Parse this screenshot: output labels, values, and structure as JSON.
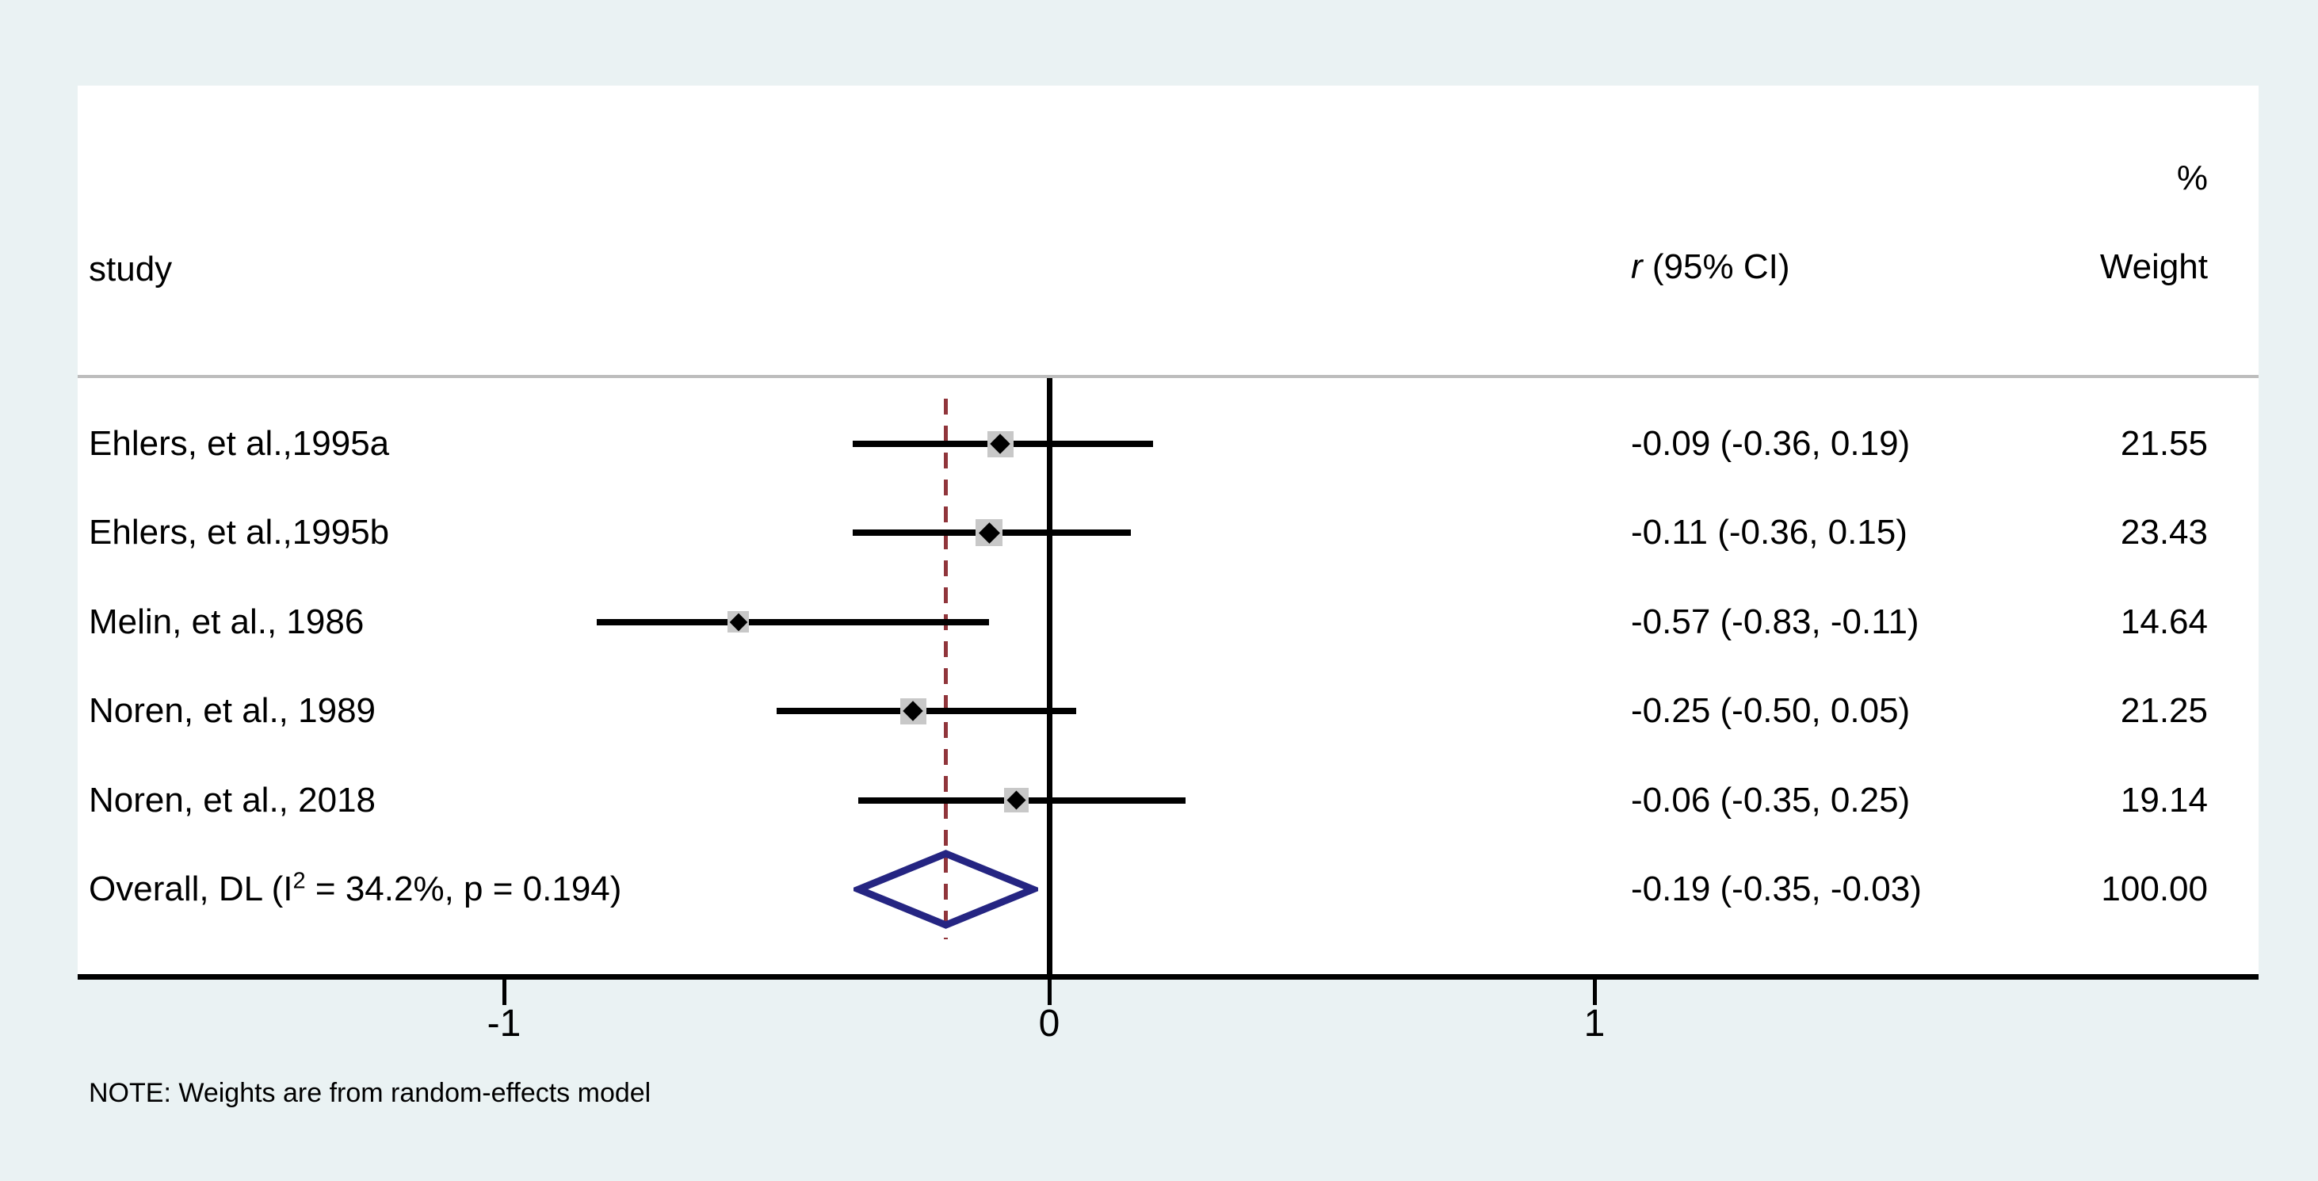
{
  "header": {
    "study_col": "study",
    "effect_col_r": "r",
    "effect_col_rest": " (95% CI)",
    "percent_col": "%",
    "weight_col": "Weight"
  },
  "note": "NOTE: Weights are from random-effects model",
  "colors": {
    "background": "#eaf2f3",
    "panel": "#ffffff",
    "separator": "#bdbdbd",
    "axis_and_ci_lines": "#000000",
    "pooled_dashed_line": "#90353b",
    "weight_square": "#c8c8c8",
    "overall_diamond": "#252582",
    "text": "#000000"
  },
  "chart_data": {
    "type": "forest",
    "effect_measure": "r",
    "x_axis": {
      "ticks": [
        -1,
        0,
        1
      ],
      "tick_labels": [
        "-1",
        "0",
        "1"
      ],
      "range_shown": [
        -1.78,
        2.22
      ],
      "zero_line": 0,
      "pooled_dashed_line": -0.19,
      "grid": false
    },
    "studies": [
      {
        "label": "Ehlers, et al.,1995a",
        "r": -0.09,
        "ci_low": -0.36,
        "ci_high": 0.19,
        "effect_text": "-0.09 (-0.36, 0.19)",
        "weight": 21.55,
        "weight_text": "21.55"
      },
      {
        "label": "Ehlers, et al.,1995b",
        "r": -0.11,
        "ci_low": -0.36,
        "ci_high": 0.15,
        "effect_text": "-0.11 (-0.36, 0.15)",
        "weight": 23.43,
        "weight_text": "23.43"
      },
      {
        "label": "Melin, et al., 1986",
        "r": -0.57,
        "ci_low": -0.83,
        "ci_high": -0.11,
        "effect_text": "-0.57 (-0.83, -0.11)",
        "weight": 14.64,
        "weight_text": "14.64"
      },
      {
        "label": "Noren, et al., 1989",
        "r": -0.25,
        "ci_low": -0.5,
        "ci_high": 0.05,
        "effect_text": "-0.25 (-0.50, 0.05)",
        "weight": 21.25,
        "weight_text": "21.25"
      },
      {
        "label": "Noren, et al., 2018",
        "r": -0.06,
        "ci_low": -0.35,
        "ci_high": 0.25,
        "effect_text": "-0.06 (-0.35, 0.25)",
        "weight": 19.14,
        "weight_text": "19.14"
      }
    ],
    "overall": {
      "label_pre": "Overall, DL (I",
      "label_sup": "2",
      "label_post": " = 34.2%, p = 0.194)",
      "r": -0.19,
      "ci_low": -0.35,
      "ci_high": -0.03,
      "effect_text": "-0.19 (-0.35, -0.03)",
      "weight": 100.0,
      "weight_text": "100.00"
    }
  }
}
